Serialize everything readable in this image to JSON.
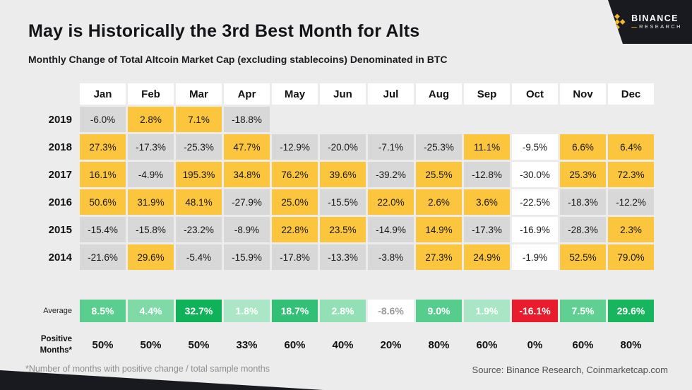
{
  "header": {
    "title": "May is Historically the 3rd Best Month for Alts",
    "subtitle": "Monthly Change of Total Altcoin Market Cap (excluding stablecoins) Denominated in BTC"
  },
  "logo": {
    "brand": "BINANCE",
    "dash": "—",
    "sub": "RESEARCH"
  },
  "footer": {
    "note": "*Number of months with positive change / total sample months",
    "source": "Source: Binance Research, Coinmarketcap.com"
  },
  "chart_data": {
    "type": "heatmap",
    "title": "May is Historically the 3rd Best Month for Alts",
    "subtitle": "Monthly Change of Total Altcoin Market Cap (excluding stablecoins) Denominated in BTC",
    "columns": [
      "Jan",
      "Feb",
      "Mar",
      "Apr",
      "May",
      "Jun",
      "Jul",
      "Aug",
      "Sep",
      "Oct",
      "Nov",
      "Dec"
    ],
    "rows": [
      {
        "year": "2019",
        "values": [
          "-6.0%",
          "2.8%",
          "7.1%",
          "-18.8%",
          "",
          "",
          "",
          "",
          "",
          "",
          "",
          ""
        ]
      },
      {
        "year": "2018",
        "values": [
          "27.3%",
          "-17.3%",
          "-25.3%",
          "47.7%",
          "-12.9%",
          "-20.0%",
          "-7.1%",
          "-25.3%",
          "11.1%",
          "-9.5%",
          "6.6%",
          "6.4%"
        ]
      },
      {
        "year": "2017",
        "values": [
          "16.1%",
          "-4.9%",
          "195.3%",
          "34.8%",
          "76.2%",
          "39.6%",
          "-39.2%",
          "25.5%",
          "-12.8%",
          "-30.0%",
          "25.3%",
          "72.3%"
        ]
      },
      {
        "year": "2016",
        "values": [
          "50.6%",
          "31.9%",
          "48.1%",
          "-27.9%",
          "25.0%",
          "-15.5%",
          "22.0%",
          "2.6%",
          "3.6%",
          "-22.5%",
          "-18.3%",
          "-12.2%"
        ]
      },
      {
        "year": "2015",
        "values": [
          "-15.4%",
          "-15.8%",
          "-23.2%",
          "-8.9%",
          "22.8%",
          "23.5%",
          "-14.9%",
          "14.9%",
          "-17.3%",
          "-16.9%",
          "-28.3%",
          "2.3%"
        ]
      },
      {
        "year": "2014",
        "values": [
          "-21.6%",
          "29.6%",
          "-5.4%",
          "-15.9%",
          "-17.8%",
          "-13.3%",
          "-3.8%",
          "27.3%",
          "24.9%",
          "-1.9%",
          "52.5%",
          "79.0%"
        ]
      }
    ],
    "summary": {
      "average": {
        "label": "Average",
        "values": [
          "8.5%",
          "4.4%",
          "32.7%",
          "1.8%",
          "18.7%",
          "2.8%",
          "-8.6%",
          "9.0%",
          "1.9%",
          "-16.1%",
          "7.5%",
          "29.6%"
        ],
        "cell_colors": [
          "#59ce8e",
          "#7fdaa8",
          "#10b259",
          "#abe7c6",
          "#31c075",
          "#93e0b6",
          "#ffffff",
          "#56cd8c",
          "#a9e6c5",
          "#e81c2c",
          "#60d092",
          "#16b55e"
        ],
        "text_colors": [
          "#ffffff",
          "#ffffff",
          "#ffffff",
          "#ffffff",
          "#ffffff",
          "#ffffff",
          "#9b9b9b",
          "#ffffff",
          "#ffffff",
          "#ffffff",
          "#ffffff",
          "#ffffff"
        ]
      },
      "positive_months": {
        "label": "Positive\nMonths*",
        "values": [
          "50%",
          "50%",
          "50%",
          "33%",
          "60%",
          "40%",
          "20%",
          "80%",
          "60%",
          "0%",
          "60%",
          "80%"
        ]
      }
    },
    "colors": {
      "positive_cell": "#fbc53e",
      "negative_cell": "#d8d8d8",
      "october_cell": "#ffffff",
      "accent_dark": "#181a20",
      "accent_yellow": "#f3ba2f",
      "red": "#e81c2c"
    }
  }
}
